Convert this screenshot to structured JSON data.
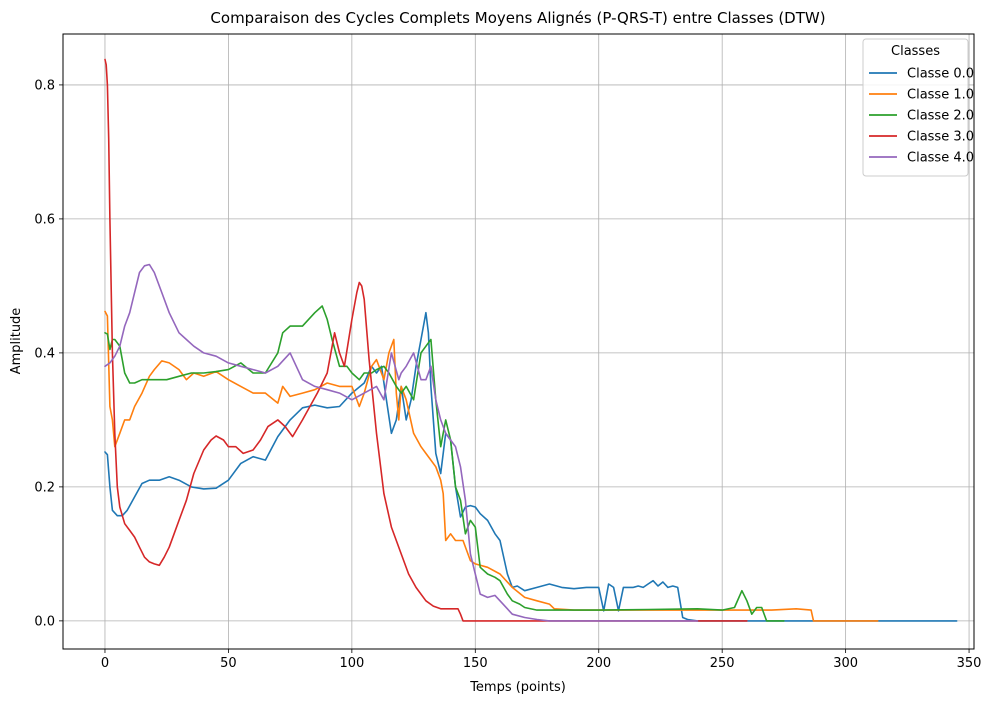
{
  "chart_data": {
    "type": "line",
    "title": "Comparaison des Cycles Complets Moyens Alignés (P-QRS-T) entre Classes (DTW)",
    "xlabel": "Temps (points)",
    "ylabel": "Amplitude",
    "xlim": [
      -17,
      352
    ],
    "ylim": [
      -0.042,
      0.876
    ],
    "xticks": [
      0,
      50,
      100,
      150,
      200,
      250,
      300,
      350
    ],
    "yticks": [
      0.0,
      0.2,
      0.4,
      0.6,
      0.8
    ],
    "xtick_labels": [
      "0",
      "50",
      "100",
      "150",
      "200",
      "250",
      "300",
      "350"
    ],
    "ytick_labels": [
      "0.0",
      "0.2",
      "0.4",
      "0.6",
      "0.8"
    ],
    "grid": true,
    "legend": {
      "title": "Classes",
      "position": "top-right"
    },
    "series": [
      {
        "name": "Classe 0.0",
        "color": "#1f77b4",
        "x": [
          0,
          1,
          2,
          3,
          5,
          7,
          9,
          12,
          15,
          18,
          22,
          26,
          30,
          35,
          40,
          45,
          50,
          55,
          60,
          65,
          70,
          75,
          80,
          85,
          90,
          95,
          100,
          105,
          108,
          110,
          112,
          114,
          116,
          118,
          120,
          122,
          124,
          126,
          128,
          130,
          131,
          132,
          134,
          136,
          138,
          140,
          142,
          144,
          146,
          148,
          150,
          152,
          155,
          158,
          160,
          163,
          165,
          167,
          170,
          175,
          180,
          185,
          190,
          195,
          200,
          202,
          204,
          206,
          208,
          210,
          212,
          214,
          216,
          218,
          220,
          222,
          224,
          226,
          228,
          230,
          232,
          234,
          236,
          240,
          250,
          260,
          280,
          300,
          320,
          345
        ],
        "y": [
          0.252,
          0.248,
          0.2,
          0.165,
          0.157,
          0.157,
          0.165,
          0.185,
          0.205,
          0.21,
          0.21,
          0.215,
          0.21,
          0.2,
          0.197,
          0.198,
          0.21,
          0.235,
          0.245,
          0.24,
          0.275,
          0.3,
          0.318,
          0.322,
          0.318,
          0.32,
          0.34,
          0.355,
          0.38,
          0.37,
          0.38,
          0.33,
          0.28,
          0.3,
          0.35,
          0.3,
          0.33,
          0.38,
          0.42,
          0.46,
          0.43,
          0.35,
          0.25,
          0.22,
          0.28,
          0.27,
          0.2,
          0.155,
          0.17,
          0.172,
          0.17,
          0.16,
          0.15,
          0.13,
          0.12,
          0.07,
          0.05,
          0.052,
          0.045,
          0.05,
          0.055,
          0.05,
          0.048,
          0.05,
          0.05,
          0.015,
          0.055,
          0.05,
          0.015,
          0.05,
          0.05,
          0.05,
          0.052,
          0.05,
          0.055,
          0.06,
          0.052,
          0.058,
          0.05,
          0.052,
          0.05,
          0.005,
          0.002,
          0.0,
          0.0,
          0.0,
          0.0,
          0.0,
          0.0,
          0.0
        ]
      },
      {
        "name": "Classe 1.0",
        "color": "#ff7f0e",
        "x": [
          0,
          1,
          2,
          3,
          4,
          6,
          8,
          10,
          12,
          15,
          18,
          20,
          23,
          26,
          30,
          33,
          36,
          40,
          45,
          50,
          55,
          60,
          65,
          70,
          72,
          75,
          80,
          85,
          90,
          95,
          100,
          103,
          105,
          108,
          110,
          113,
          115,
          117,
          118,
          119,
          120,
          122,
          125,
          128,
          130,
          132,
          134,
          136,
          137,
          138,
          140,
          142,
          145,
          148,
          150,
          155,
          160,
          165,
          170,
          175,
          180,
          182,
          190,
          200,
          220,
          240,
          260,
          270,
          280,
          286,
          287,
          300,
          313
        ],
        "y": [
          0.462,
          0.455,
          0.32,
          0.3,
          0.26,
          0.28,
          0.3,
          0.3,
          0.32,
          0.34,
          0.365,
          0.375,
          0.388,
          0.385,
          0.375,
          0.36,
          0.37,
          0.365,
          0.372,
          0.36,
          0.35,
          0.34,
          0.34,
          0.325,
          0.35,
          0.335,
          0.34,
          0.345,
          0.355,
          0.35,
          0.35,
          0.32,
          0.34,
          0.38,
          0.39,
          0.36,
          0.4,
          0.42,
          0.34,
          0.3,
          0.35,
          0.33,
          0.28,
          0.26,
          0.25,
          0.24,
          0.23,
          0.21,
          0.19,
          0.12,
          0.13,
          0.12,
          0.12,
          0.09,
          0.085,
          0.08,
          0.07,
          0.05,
          0.035,
          0.03,
          0.025,
          0.018,
          0.016,
          0.016,
          0.016,
          0.016,
          0.016,
          0.016,
          0.018,
          0.016,
          0.0,
          0.0,
          0.0
        ]
      },
      {
        "name": "Classe 2.0",
        "color": "#2ca02c",
        "x": [
          0,
          1,
          2,
          3,
          4,
          6,
          8,
          10,
          12,
          15,
          20,
          25,
          30,
          35,
          40,
          45,
          50,
          55,
          60,
          65,
          70,
          72,
          75,
          80,
          85,
          88,
          90,
          92,
          95,
          98,
          100,
          103,
          105,
          108,
          110,
          113,
          115,
          118,
          120,
          122,
          125,
          128,
          130,
          132,
          134,
          136,
          138,
          140,
          142,
          144,
          146,
          148,
          150,
          152,
          155,
          158,
          160,
          163,
          165,
          168,
          170,
          175,
          180,
          190,
          200,
          220,
          240,
          250,
          255,
          258,
          260,
          262,
          264,
          266,
          268,
          270,
          275
        ],
        "y": [
          0.43,
          0.428,
          0.405,
          0.42,
          0.42,
          0.41,
          0.37,
          0.355,
          0.355,
          0.36,
          0.36,
          0.36,
          0.365,
          0.37,
          0.37,
          0.372,
          0.375,
          0.385,
          0.37,
          0.37,
          0.4,
          0.43,
          0.44,
          0.44,
          0.46,
          0.47,
          0.45,
          0.42,
          0.38,
          0.38,
          0.37,
          0.36,
          0.37,
          0.37,
          0.375,
          0.38,
          0.37,
          0.35,
          0.34,
          0.35,
          0.33,
          0.4,
          0.41,
          0.42,
          0.33,
          0.26,
          0.3,
          0.27,
          0.2,
          0.18,
          0.13,
          0.15,
          0.14,
          0.08,
          0.07,
          0.065,
          0.06,
          0.04,
          0.03,
          0.025,
          0.02,
          0.016,
          0.016,
          0.016,
          0.016,
          0.017,
          0.018,
          0.016,
          0.02,
          0.045,
          0.03,
          0.01,
          0.02,
          0.02,
          0.0,
          0.0,
          0.0
        ]
      },
      {
        "name": "Classe 3.0",
        "color": "#d62728",
        "x": [
          0,
          0.5,
          1,
          1.5,
          2,
          3,
          4,
          5,
          6,
          8,
          10,
          12,
          14,
          16,
          18,
          20,
          22,
          24,
          26,
          28,
          30,
          33,
          36,
          40,
          43,
          45,
          48,
          50,
          53,
          56,
          60,
          63,
          66,
          70,
          73,
          76,
          80,
          83,
          86,
          90,
          93,
          95,
          97,
          100,
          102,
          103,
          104,
          105,
          107,
          110,
          113,
          116,
          120,
          123,
          126,
          130,
          133,
          136,
          140,
          143,
          144,
          145,
          150,
          160,
          180,
          200,
          220,
          240,
          260
        ],
        "y": [
          0.838,
          0.83,
          0.8,
          0.72,
          0.6,
          0.4,
          0.28,
          0.2,
          0.17,
          0.145,
          0.135,
          0.125,
          0.11,
          0.095,
          0.088,
          0.085,
          0.083,
          0.095,
          0.11,
          0.13,
          0.15,
          0.18,
          0.22,
          0.255,
          0.27,
          0.276,
          0.27,
          0.26,
          0.26,
          0.25,
          0.255,
          0.27,
          0.29,
          0.3,
          0.29,
          0.275,
          0.3,
          0.32,
          0.34,
          0.37,
          0.43,
          0.4,
          0.38,
          0.45,
          0.49,
          0.505,
          0.5,
          0.48,
          0.39,
          0.28,
          0.19,
          0.14,
          0.1,
          0.07,
          0.05,
          0.03,
          0.022,
          0.018,
          0.018,
          0.018,
          0.01,
          0.0,
          0.0,
          0.0,
          0.0,
          0.0,
          0.0,
          0.0,
          0.0
        ]
      },
      {
        "name": "Classe 4.0",
        "color": "#9467bd",
        "x": [
          0,
          2,
          4,
          6,
          8,
          10,
          12,
          14,
          16,
          18,
          20,
          23,
          26,
          30,
          33,
          36,
          40,
          45,
          50,
          55,
          60,
          65,
          70,
          75,
          80,
          85,
          90,
          95,
          100,
          105,
          110,
          113,
          116,
          119,
          120,
          122,
          125,
          128,
          130,
          132,
          134,
          136,
          138,
          140,
          142,
          144,
          146,
          148,
          150,
          152,
          155,
          158,
          160,
          165,
          170,
          175,
          180,
          200,
          220,
          240
        ],
        "y": [
          0.38,
          0.385,
          0.395,
          0.41,
          0.44,
          0.46,
          0.49,
          0.52,
          0.53,
          0.532,
          0.52,
          0.49,
          0.46,
          0.43,
          0.42,
          0.41,
          0.4,
          0.395,
          0.385,
          0.38,
          0.375,
          0.37,
          0.38,
          0.4,
          0.36,
          0.35,
          0.345,
          0.34,
          0.33,
          0.34,
          0.35,
          0.33,
          0.4,
          0.36,
          0.37,
          0.38,
          0.4,
          0.36,
          0.36,
          0.38,
          0.33,
          0.3,
          0.28,
          0.27,
          0.26,
          0.23,
          0.18,
          0.1,
          0.07,
          0.04,
          0.035,
          0.038,
          0.03,
          0.01,
          0.005,
          0.002,
          0.0,
          0.0,
          0.0,
          0.0
        ]
      }
    ]
  }
}
